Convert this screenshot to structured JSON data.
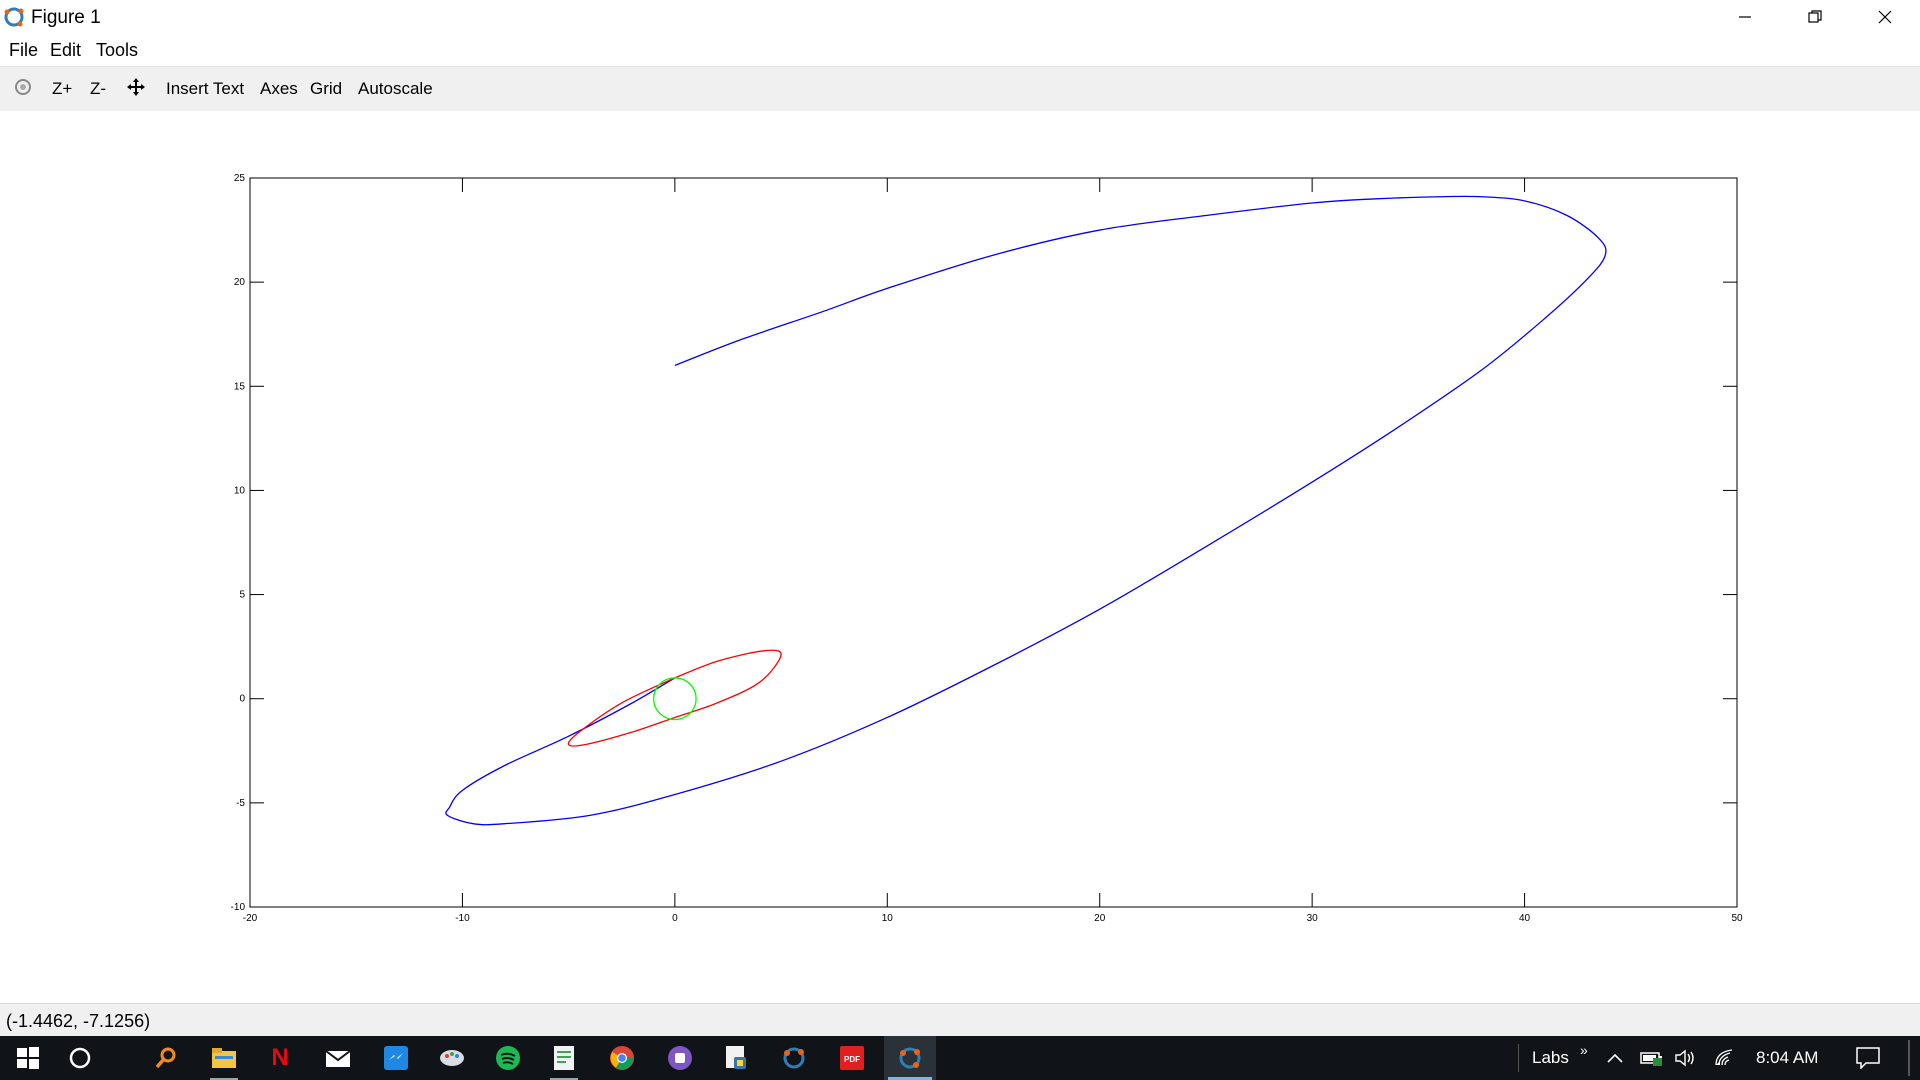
{
  "window": {
    "title": "Figure 1"
  },
  "menu": [
    "File",
    "Edit",
    "Tools"
  ],
  "toolbar": {
    "zoom_in": "Z+",
    "zoom_out": "Z-",
    "insert_text": "Insert Text",
    "axes": "Axes",
    "grid": "Grid",
    "autoscale": "Autoscale",
    "icons": [
      "rotate-icon",
      "pan-icon"
    ]
  },
  "chart_data": {
    "type": "line",
    "title": "",
    "xlabel": "",
    "ylabel": "",
    "xlim": [
      -20,
      50
    ],
    "ylim": [
      -10,
      25
    ],
    "xticks": [
      -20,
      -10,
      0,
      10,
      20,
      30,
      40,
      50
    ],
    "yticks": [
      -10,
      -5,
      0,
      5,
      10,
      15,
      20,
      25
    ],
    "grid": false,
    "legend": "none",
    "series": [
      {
        "color": "#0000ff",
        "x": [
          0,
          3,
          7,
          10,
          15,
          20,
          25,
          30,
          33,
          36,
          38,
          40,
          42,
          43.5,
          43.8,
          43,
          41,
          38,
          34,
          30,
          25,
          20,
          15,
          10,
          5,
          0,
          -4,
          -8,
          -9.5,
          -10.7,
          -10.6,
          -10,
          -8,
          -5,
          -2,
          0
        ],
        "y": [
          16,
          17.2,
          18.6,
          19.7,
          21.3,
          22.5,
          23.2,
          23.8,
          24.0,
          24.1,
          24.1,
          23.9,
          23.2,
          22.1,
          21.3,
          20.2,
          18.3,
          15.8,
          13.0,
          10.4,
          7.3,
          4.3,
          1.6,
          -0.9,
          -3.0,
          -4.6,
          -5.6,
          -6.0,
          -6.0,
          -5.6,
          -5.2,
          -4.4,
          -3.2,
          -1.8,
          -0.2,
          1.0
        ]
      },
      {
        "color": "#ff0000",
        "x": [
          0,
          -2.5,
          -4.5,
          -5,
          -4.2,
          -2,
          0,
          2,
          4,
          5,
          4.2,
          2,
          0
        ],
        "y": [
          1.0,
          -0.2,
          -1.6,
          -2.2,
          -2.2,
          -1.6,
          -0.9,
          -0.2,
          0.8,
          2.1,
          2.3,
          1.8,
          1.0
        ]
      },
      {
        "color": "#00ff00",
        "circle": {
          "cx": 0,
          "cy": 0,
          "r": 1
        }
      }
    ]
  },
  "status": {
    "coordinates": "(-1.4462, -7.1256)"
  },
  "taskbar": {
    "icons": [
      "windows-start-icon",
      "cortana-icon",
      "search-app-icon",
      "file-explorer-icon",
      "netflix-icon",
      "mail-icon",
      "messenger-icon",
      "paint-icon",
      "spotify-icon",
      "notepad-icon",
      "chrome-icon",
      "app-icon",
      "python-icon",
      "octave-icon",
      "pdf-icon",
      "octave-active-icon"
    ],
    "toolbar_label": "Labs",
    "time": "8:04 AM"
  }
}
